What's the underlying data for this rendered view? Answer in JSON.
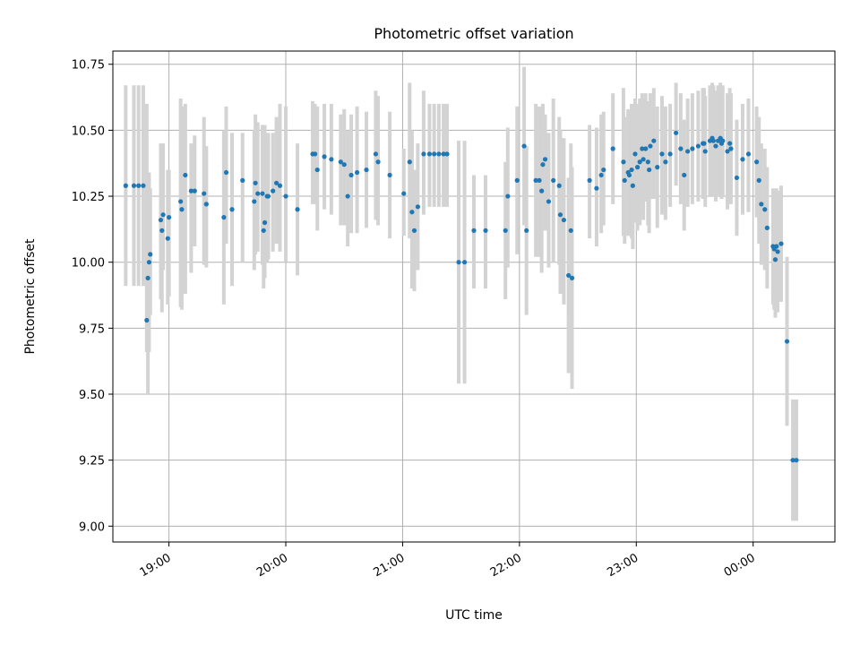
{
  "chart_data": {
    "type": "scatter",
    "title": "Photometric offset variation",
    "xlabel": "UTC time",
    "ylabel": "Photometric offset",
    "x_unit": "hours since 00:00 UTC",
    "xlim": [
      18.52,
      24.7
    ],
    "ylim": [
      8.94,
      10.8
    ],
    "x_ticks": [
      {
        "value": 19,
        "label": "19:00"
      },
      {
        "value": 20,
        "label": "20:00"
      },
      {
        "value": 21,
        "label": "21:00"
      },
      {
        "value": 22,
        "label": "22:00"
      },
      {
        "value": 23,
        "label": "23:00"
      },
      {
        "value": 24,
        "label": "00:00"
      }
    ],
    "y_ticks": [
      {
        "value": 9.0,
        "label": "9.00"
      },
      {
        "value": 9.25,
        "label": "9.25"
      },
      {
        "value": 9.5,
        "label": "9.50"
      },
      {
        "value": 9.75,
        "label": "9.75"
      },
      {
        "value": 10.0,
        "label": "10.00"
      },
      {
        "value": 10.25,
        "label": "10.25"
      },
      {
        "value": 10.5,
        "label": "10.50"
      },
      {
        "value": 10.75,
        "label": "10.75"
      }
    ],
    "grid": true,
    "marker_color": "#1f77b4",
    "errorbar_color": "#d3d3d3",
    "points": [
      [
        18.63,
        10.29,
        9.91,
        10.67
      ],
      [
        18.7,
        10.29,
        9.91,
        10.67
      ],
      [
        18.74,
        10.29,
        9.91,
        10.67
      ],
      [
        18.78,
        10.29,
        9.91,
        10.67
      ],
      [
        18.81,
        9.78,
        9.66,
        10.6
      ],
      [
        18.82,
        9.94,
        9.5,
        10.28
      ],
      [
        18.83,
        10.0,
        9.66,
        10.34
      ],
      [
        18.84,
        10.03,
        9.8,
        10.28
      ],
      [
        18.93,
        10.16,
        9.86,
        10.45
      ],
      [
        18.94,
        10.12,
        9.81,
        10.43
      ],
      [
        18.95,
        10.18,
        9.97,
        10.45
      ],
      [
        18.99,
        10.09,
        9.84,
        10.35
      ],
      [
        19.0,
        10.17,
        9.87,
        10.35
      ],
      [
        19.1,
        10.23,
        9.83,
        10.62
      ],
      [
        19.11,
        10.2,
        9.82,
        10.59
      ],
      [
        19.14,
        10.33,
        9.88,
        10.6
      ],
      [
        19.19,
        10.27,
        9.96,
        10.45
      ],
      [
        19.22,
        10.27,
        10.06,
        10.48
      ],
      [
        19.3,
        10.26,
        9.99,
        10.55
      ],
      [
        19.32,
        10.22,
        9.98,
        10.44
      ],
      [
        19.47,
        10.17,
        9.84,
        10.5
      ],
      [
        19.49,
        10.34,
        10.07,
        10.59
      ],
      [
        19.54,
        10.2,
        9.91,
        10.49
      ],
      [
        19.63,
        10.31,
        10.0,
        10.49
      ],
      [
        19.73,
        10.23,
        9.97,
        10.5
      ],
      [
        19.74,
        10.3,
        10.03,
        10.56
      ],
      [
        19.76,
        10.26,
        10.04,
        10.53
      ],
      [
        19.8,
        10.26,
        9.99,
        10.52
      ],
      [
        19.81,
        10.12,
        9.9,
        10.4
      ],
      [
        19.82,
        10.15,
        9.94,
        10.52
      ],
      [
        19.84,
        10.25,
        10.0,
        10.46
      ],
      [
        19.85,
        10.25,
        10.01,
        10.49
      ],
      [
        19.89,
        10.27,
        10.04,
        10.49
      ],
      [
        19.92,
        10.3,
        10.07,
        10.55
      ],
      [
        19.95,
        10.29,
        10.04,
        10.6
      ],
      [
        20.0,
        10.25,
        10.0,
        10.59
      ],
      [
        20.1,
        10.2,
        9.95,
        10.45
      ],
      [
        20.23,
        10.41,
        10.22,
        10.61
      ],
      [
        20.25,
        10.41,
        10.22,
        10.6
      ],
      [
        20.27,
        10.35,
        10.12,
        10.59
      ],
      [
        20.33,
        10.4,
        10.2,
        10.6
      ],
      [
        20.39,
        10.39,
        10.18,
        10.6
      ],
      [
        20.47,
        10.38,
        10.14,
        10.56
      ],
      [
        20.5,
        10.37,
        10.14,
        10.58
      ],
      [
        20.53,
        10.25,
        10.06,
        10.5
      ],
      [
        20.56,
        10.33,
        10.11,
        10.56
      ],
      [
        20.61,
        10.34,
        10.11,
        10.59
      ],
      [
        20.69,
        10.35,
        10.13,
        10.57
      ],
      [
        20.77,
        10.41,
        10.16,
        10.65
      ],
      [
        20.79,
        10.38,
        10.14,
        10.63
      ],
      [
        20.89,
        10.33,
        10.09,
        10.57
      ],
      [
        21.01,
        10.26,
        10.1,
        10.43
      ],
      [
        21.06,
        10.38,
        10.09,
        10.68
      ],
      [
        21.08,
        10.19,
        9.9,
        10.5
      ],
      [
        21.1,
        10.12,
        9.89,
        10.35
      ],
      [
        21.13,
        10.21,
        9.97,
        10.45
      ],
      [
        21.18,
        10.41,
        10.18,
        10.65
      ],
      [
        21.23,
        10.41,
        10.21,
        10.6
      ],
      [
        21.27,
        10.41,
        10.21,
        10.6
      ],
      [
        21.31,
        10.41,
        10.21,
        10.6
      ],
      [
        21.35,
        10.41,
        10.21,
        10.6
      ],
      [
        21.38,
        10.41,
        10.21,
        10.6
      ],
      [
        21.48,
        10.0,
        9.54,
        10.46
      ],
      [
        21.53,
        10.0,
        9.54,
        10.46
      ],
      [
        21.61,
        10.12,
        9.9,
        10.33
      ],
      [
        21.71,
        10.12,
        9.9,
        10.33
      ],
      [
        21.88,
        10.12,
        9.86,
        10.38
      ],
      [
        21.9,
        10.25,
        9.98,
        10.51
      ],
      [
        21.98,
        10.31,
        10.03,
        10.59
      ],
      [
        22.04,
        10.44,
        10.14,
        10.74
      ],
      [
        22.06,
        10.12,
        9.8,
        10.44
      ],
      [
        22.14,
        10.31,
        10.02,
        10.6
      ],
      [
        22.17,
        10.31,
        10.02,
        10.59
      ],
      [
        22.19,
        10.27,
        9.96,
        10.58
      ],
      [
        22.2,
        10.37,
        10.14,
        10.6
      ],
      [
        22.22,
        10.39,
        10.12,
        10.56
      ],
      [
        22.25,
        10.23,
        9.98,
        10.49
      ],
      [
        22.29,
        10.31,
        10.0,
        10.62
      ],
      [
        22.34,
        10.29,
        9.99,
        10.55
      ],
      [
        22.35,
        10.18,
        9.88,
        10.5
      ],
      [
        22.38,
        10.16,
        9.84,
        10.47
      ],
      [
        22.42,
        9.95,
        9.58,
        10.32
      ],
      [
        22.44,
        10.12,
        9.79,
        10.45
      ],
      [
        22.45,
        9.94,
        9.52,
        10.36
      ],
      [
        22.6,
        10.31,
        10.09,
        10.52
      ],
      [
        22.66,
        10.28,
        10.06,
        10.51
      ],
      [
        22.7,
        10.33,
        10.11,
        10.56
      ],
      [
        22.72,
        10.35,
        10.14,
        10.57
      ],
      [
        22.8,
        10.43,
        10.22,
        10.64
      ],
      [
        22.89,
        10.38,
        10.1,
        10.66
      ],
      [
        22.9,
        10.31,
        10.07,
        10.55
      ],
      [
        22.93,
        10.34,
        10.1,
        10.58
      ],
      [
        22.94,
        10.33,
        10.1,
        10.57
      ],
      [
        22.96,
        10.35,
        10.09,
        10.6
      ],
      [
        22.97,
        10.29,
        10.05,
        10.53
      ],
      [
        22.99,
        10.41,
        10.15,
        10.62
      ],
      [
        23.01,
        10.36,
        10.12,
        10.6
      ],
      [
        23.03,
        10.38,
        10.14,
        10.62
      ],
      [
        23.05,
        10.43,
        10.22,
        10.64
      ],
      [
        23.06,
        10.39,
        10.16,
        10.62
      ],
      [
        23.08,
        10.43,
        10.23,
        10.64
      ],
      [
        23.1,
        10.38,
        10.14,
        10.61
      ],
      [
        23.11,
        10.35,
        10.11,
        10.6
      ],
      [
        23.12,
        10.44,
        10.24,
        10.64
      ],
      [
        23.15,
        10.46,
        10.24,
        10.66
      ],
      [
        23.18,
        10.36,
        10.13,
        10.59
      ],
      [
        23.22,
        10.41,
        10.18,
        10.63
      ],
      [
        23.25,
        10.38,
        10.16,
        10.59
      ],
      [
        23.29,
        10.41,
        10.21,
        10.6
      ],
      [
        23.34,
        10.49,
        10.29,
        10.68
      ],
      [
        23.38,
        10.43,
        10.22,
        10.64
      ],
      [
        23.41,
        10.33,
        10.12,
        10.54
      ],
      [
        23.44,
        10.42,
        10.21,
        10.62
      ],
      [
        23.48,
        10.43,
        10.22,
        10.64
      ],
      [
        23.53,
        10.44,
        10.23,
        10.65
      ],
      [
        23.57,
        10.45,
        10.24,
        10.66
      ],
      [
        23.58,
        10.45,
        10.24,
        10.66
      ],
      [
        23.59,
        10.42,
        10.21,
        10.63
      ],
      [
        23.63,
        10.46,
        10.25,
        10.67
      ],
      [
        23.65,
        10.47,
        10.26,
        10.68
      ],
      [
        23.66,
        10.46,
        10.25,
        10.67
      ],
      [
        23.68,
        10.44,
        10.23,
        10.65
      ],
      [
        23.7,
        10.46,
        10.25,
        10.67
      ],
      [
        23.72,
        10.47,
        10.26,
        10.68
      ],
      [
        23.73,
        10.45,
        10.24,
        10.66
      ],
      [
        23.74,
        10.46,
        10.25,
        10.67
      ],
      [
        23.78,
        10.42,
        10.2,
        10.64
      ],
      [
        23.8,
        10.45,
        10.24,
        10.66
      ],
      [
        23.81,
        10.43,
        10.22,
        10.64
      ],
      [
        23.86,
        10.32,
        10.1,
        10.54
      ],
      [
        23.91,
        10.39,
        10.18,
        10.6
      ],
      [
        23.96,
        10.41,
        10.19,
        10.62
      ],
      [
        24.03,
        10.38,
        10.17,
        10.59
      ],
      [
        24.05,
        10.31,
        10.07,
        10.55
      ],
      [
        24.07,
        10.22,
        9.99,
        10.45
      ],
      [
        24.1,
        10.2,
        9.97,
        10.43
      ],
      [
        24.12,
        10.13,
        9.9,
        10.36
      ],
      [
        24.17,
        10.06,
        9.84,
        10.28
      ],
      [
        24.18,
        10.05,
        9.82,
        10.27
      ],
      [
        24.19,
        10.01,
        9.79,
        10.23
      ],
      [
        24.2,
        10.06,
        9.84,
        10.28
      ],
      [
        24.21,
        10.04,
        9.81,
        10.27
      ],
      [
        24.24,
        10.07,
        9.85,
        10.29
      ],
      [
        24.29,
        9.7,
        9.38,
        10.02
      ],
      [
        24.34,
        9.25,
        9.02,
        9.48
      ],
      [
        24.37,
        9.25,
        9.02,
        9.48
      ]
    ]
  }
}
